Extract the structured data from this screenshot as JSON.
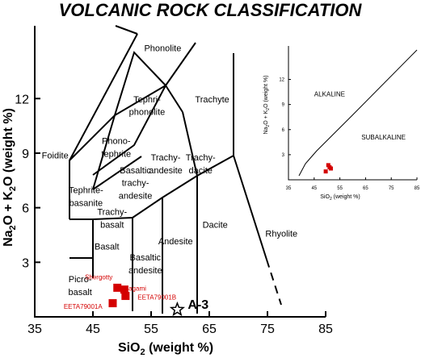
{
  "chart_data": [
    {
      "type": "scatter",
      "title": "VOLCANIC ROCK CLASSIFICATION",
      "xlabel_main": "SiO",
      "xlabel_sub": "2",
      "xlabel_tail": " (weight %)",
      "ylabel_parts": [
        "Na",
        "2",
        "O + K",
        "2",
        "O (weight %)"
      ],
      "xlim": [
        35,
        85
      ],
      "ylim": [
        0,
        16
      ],
      "x_ticks": [
        35,
        45,
        55,
        65,
        75,
        85
      ],
      "x_tick_labels": [
        "35",
        "45",
        "55",
        "65",
        "75",
        "85"
      ],
      "y_ticks": [
        3,
        6,
        9,
        12
      ],
      "y_tick_labels": [
        "3",
        "6",
        "9",
        "12"
      ],
      "fields": [
        {
          "name": "Foidite",
          "x": 38.5,
          "y": 8.7
        },
        {
          "name": "Phonolite",
          "x": 57,
          "y": 14.6
        },
        {
          "name": "Tephri-",
          "x": 54.3,
          "y": 11.8
        },
        {
          "name": "phonolite",
          "x": 54.3,
          "y": 11.1
        },
        {
          "name": "Trachyte",
          "x": 65.5,
          "y": 11.8
        },
        {
          "name": "Phono-",
          "x": 49,
          "y": 9.5
        },
        {
          "name": "tephrite",
          "x": 49,
          "y": 8.8
        },
        {
          "name": "Trachy-",
          "x": 57.5,
          "y": 8.6
        },
        {
          "name": "andesite",
          "x": 57.5,
          "y": 7.9
        },
        {
          "name": "Trachy-",
          "x": 63.5,
          "y": 8.6
        },
        {
          "name": "dacite",
          "x": 63.5,
          "y": 7.9
        },
        {
          "name": "Basaltic",
          "x": 52.3,
          "y": 7.9
        },
        {
          "name": "trachy-",
          "x": 52.3,
          "y": 7.2
        },
        {
          "name": "andesite",
          "x": 52.3,
          "y": 6.5
        },
        {
          "name": "Tephrite-",
          "x": 43.8,
          "y": 6.8
        },
        {
          "name": "basanite",
          "x": 43.8,
          "y": 6.1
        },
        {
          "name": "Trachy-",
          "x": 48.3,
          "y": 5.6
        },
        {
          "name": "basalt",
          "x": 48.3,
          "y": 4.9
        },
        {
          "name": "Andesite",
          "x": 59.2,
          "y": 4.0
        },
        {
          "name": "Dacite",
          "x": 66,
          "y": 4.9
        },
        {
          "name": "Rhyolite",
          "x": 77.4,
          "y": 4.4
        },
        {
          "name": "Basalt",
          "x": 47.4,
          "y": 3.7
        },
        {
          "name": "Basaltic",
          "x": 54,
          "y": 3.1
        },
        {
          "name": "andesite",
          "x": 54,
          "y": 2.4
        },
        {
          "name": "Picro-",
          "x": 42.8,
          "y": 1.9
        },
        {
          "name": "basalt",
          "x": 42.8,
          "y": 1.2
        }
      ],
      "samples": [
        {
          "name": "Shergotty",
          "x": 49.2,
          "y": 1.6,
          "color": "#d40000",
          "label_x": 46,
          "label_y": 2.05
        },
        {
          "name": "Zagami",
          "x": 50.4,
          "y": 1.5,
          "color": "#d40000",
          "label_x": 52.3,
          "label_y": 1.45
        },
        {
          "name": "EETA79001B",
          "x": 50.6,
          "y": 1.15,
          "color": "#d40000",
          "label_x": 56,
          "label_y": 0.95
        },
        {
          "name": "EETA79001A",
          "x": 48.4,
          "y": 0.75,
          "color": "#d40000",
          "label_x": 43.3,
          "label_y": 0.45
        }
      ],
      "star": {
        "name": "A-3",
        "x": 59.5,
        "y": 0.4
      }
    },
    {
      "type": "scatter",
      "title": "",
      "xlabel_main": "SiO",
      "xlabel_sub": "2",
      "xlabel_tail": " (weight %)",
      "ylabel_parts": [
        "Na",
        "2",
        "O + K",
        "2",
        "O (weight %)"
      ],
      "xlim": [
        35,
        85
      ],
      "ylim": [
        0,
        16
      ],
      "x_ticks": [
        35,
        45,
        55,
        65,
        75,
        85
      ],
      "x_tick_labels": [
        "35",
        "45",
        "55",
        "65",
        "75",
        "85"
      ],
      "y_ticks": [
        3,
        6,
        9,
        12
      ],
      "y_tick_labels": [
        "3",
        "6",
        "9",
        "12"
      ],
      "regions": [
        {
          "name": "ALKALINE",
          "x": 51,
          "y": 10
        },
        {
          "name": "SUBALKALINE",
          "x": 72,
          "y": 4.8
        }
      ],
      "samples": [
        {
          "x": 50.5,
          "y": 1.75
        },
        {
          "x": 51.5,
          "y": 1.35
        },
        {
          "x": 49.5,
          "y": 1.0
        },
        {
          "x": 51,
          "y": 1.5
        }
      ],
      "sample_color": "#d40000"
    }
  ]
}
